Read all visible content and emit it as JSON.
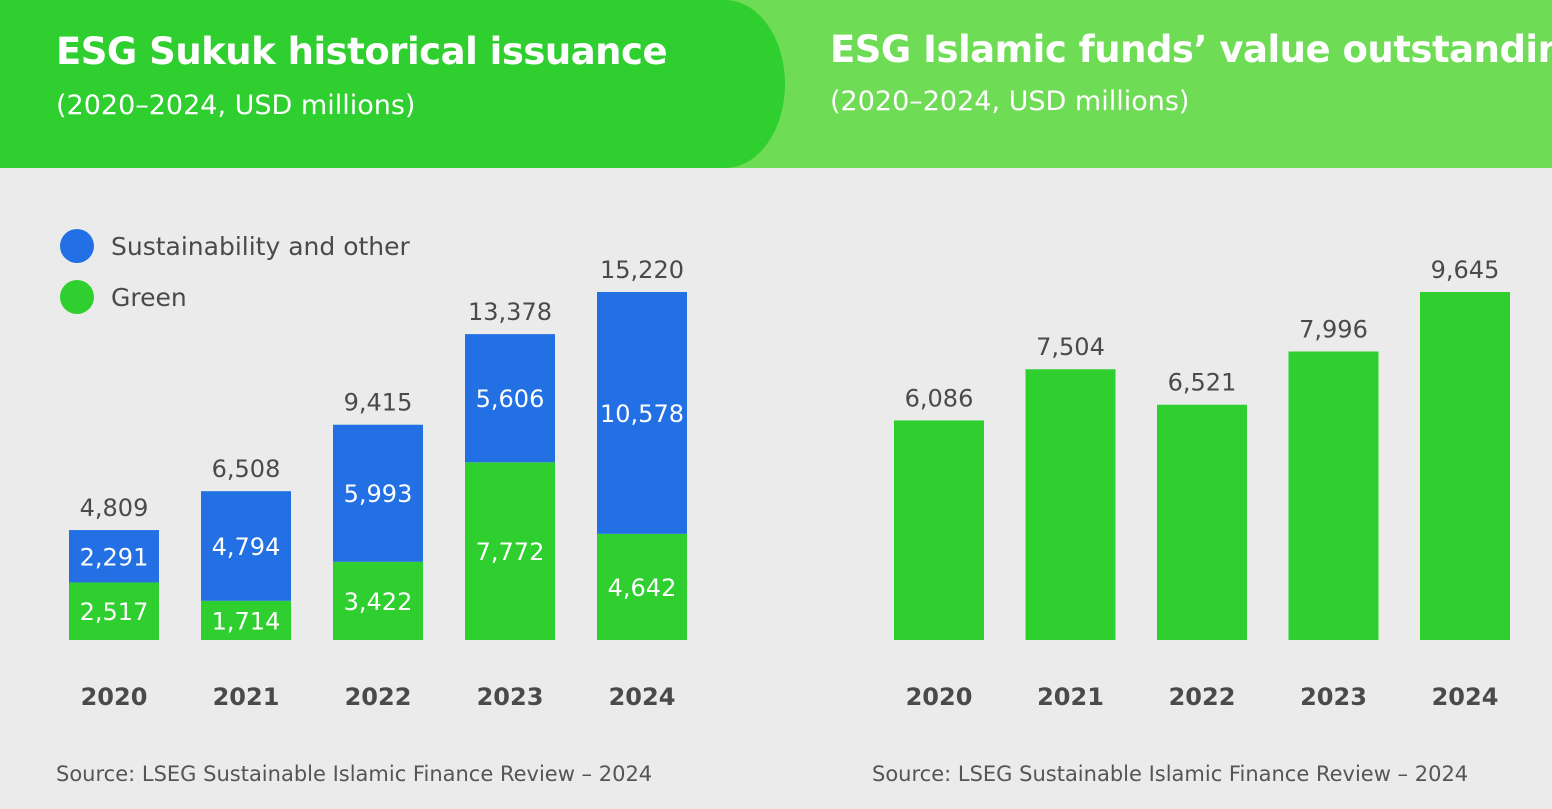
{
  "colors": {
    "green": "#2ecf2e",
    "blue": "#2270e3",
    "header_dark": "#2ecf2e",
    "header_light": "#6edc55"
  },
  "chart_data": [
    {
      "type": "bar",
      "stacked": true,
      "title": "ESG Sukuk historical issuance",
      "subtitle": "(2020–2024, USD millions)",
      "categories": [
        "2020",
        "2021",
        "2022",
        "2023",
        "2024"
      ],
      "series": [
        {
          "name": "Green",
          "color": "#2ecf2e",
          "values": [
            2517,
            1714,
            3422,
            7772,
            4642
          ],
          "labels": [
            "2,517",
            "1,714",
            "3,422",
            "7,772",
            "4,642"
          ]
        },
        {
          "name": "Sustainability and other",
          "color": "#2270e3",
          "values": [
            2291,
            4794,
            5993,
            5606,
            10578
          ],
          "labels": [
            "2,291",
            "4,794",
            "5,993",
            "5,606",
            "10,578"
          ]
        }
      ],
      "totals": [
        4809,
        6508,
        9415,
        13378,
        15220
      ],
      "total_labels": [
        "4,809",
        "6,508",
        "9,415",
        "13,378",
        "15,220"
      ],
      "legend": {
        "placement": "top-left",
        "items": [
          "Sustainability and other",
          "Green"
        ]
      },
      "grid": false,
      "ylim": [
        0,
        15220
      ],
      "source": "Source: LSEG Sustainable Islamic Finance Review – 2024"
    },
    {
      "type": "bar",
      "title": "ESG Islamic funds’ value outstanding",
      "subtitle": "(2020–2024, USD millions)",
      "categories": [
        "2020",
        "2021",
        "2022",
        "2023",
        "2024"
      ],
      "values": [
        6086,
        7504,
        6521,
        7996,
        9645
      ],
      "labels": [
        "6,086",
        "7,504",
        "6,521",
        "7,996",
        "9,645"
      ],
      "color": "#2ecf2e",
      "grid": false,
      "ylim": [
        0,
        9645
      ],
      "source": "Source: LSEG Sustainable Islamic Finance Review – 2024"
    }
  ]
}
